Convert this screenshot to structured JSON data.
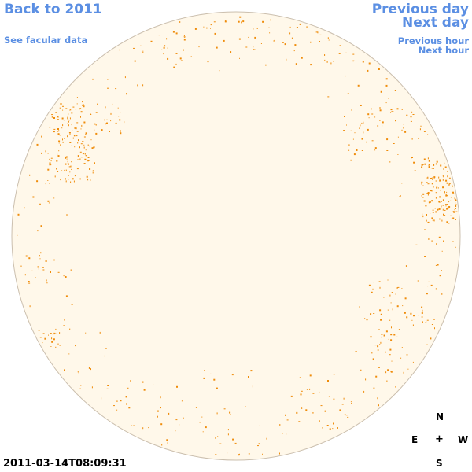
{
  "nav": {
    "back_label": "Back to 2011",
    "facular_label": "See facular data",
    "prev_day_label": "Previous day",
    "next_day_label": "Next day",
    "prev_hour_label": "Previous hour",
    "next_hour_label": "Next hour"
  },
  "compass": {
    "north": "N",
    "east": "E",
    "center": "+",
    "west": "W",
    "south": "S"
  },
  "timestamp": "2011-03-14T08:09:31",
  "colors": {
    "disk_fill": "#fff8ea",
    "disk_edge": "#cbbfae",
    "feature": "#ef8c0a",
    "link": "#5b8fe3"
  }
}
